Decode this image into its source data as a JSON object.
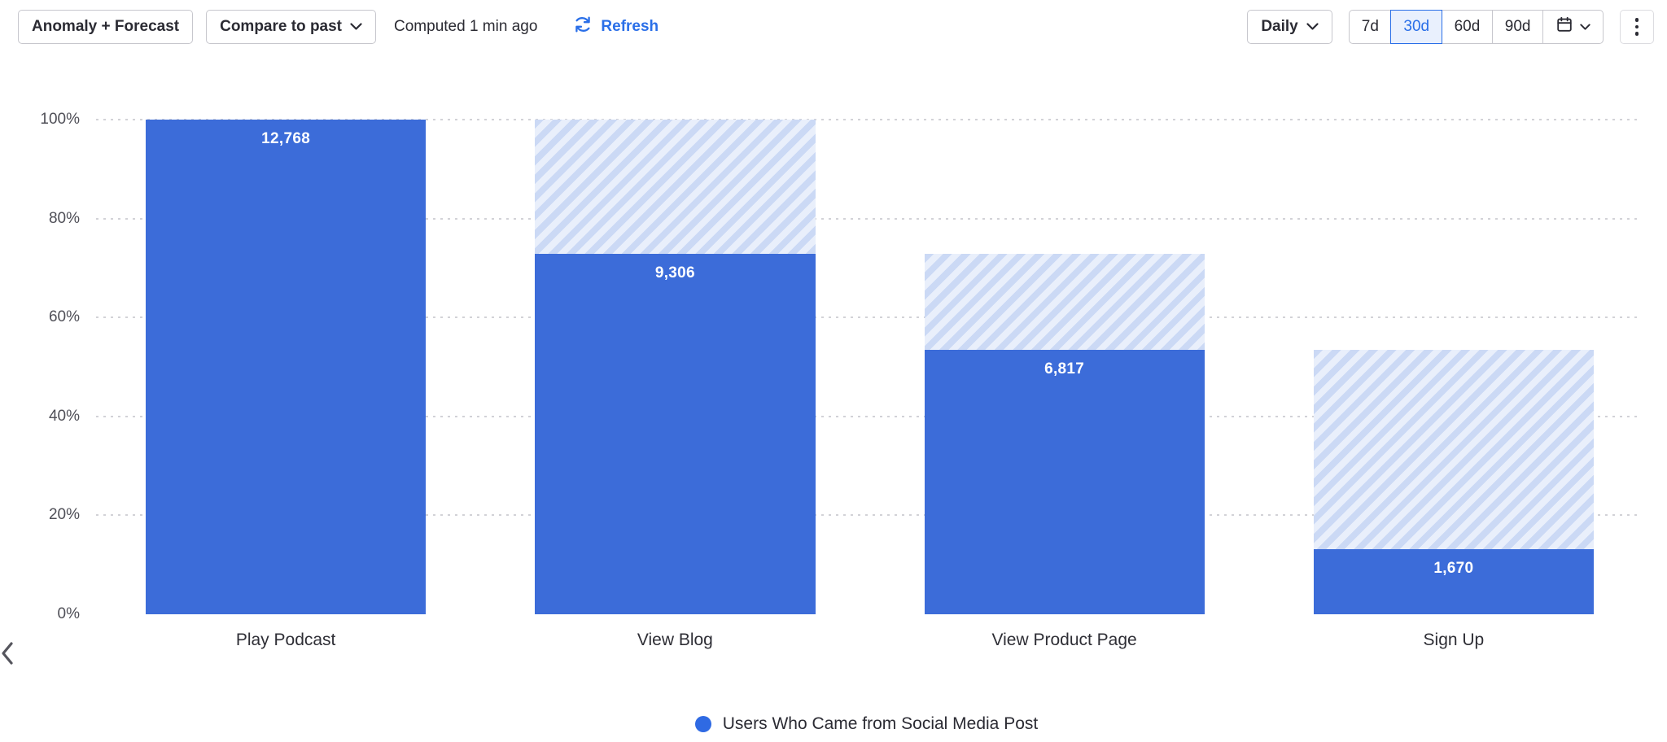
{
  "toolbar": {
    "anomaly_button": "Anomaly + Forecast",
    "compare_button": "Compare to past",
    "computed_text": "Computed 1 min ago",
    "refresh_label": "Refresh",
    "interval_button": "Daily",
    "range_options": [
      "7d",
      "30d",
      "60d",
      "90d"
    ],
    "selected_range": "30d"
  },
  "colors": {
    "bar": "#3c6cd9",
    "hatch_dark": "#cbd9f5",
    "hatch_light": "#e9effb",
    "accent": "#2a6fe8",
    "legend_dot": "#2f6ae3"
  },
  "chart_data": {
    "type": "bar",
    "subtype": "funnel-conversion",
    "categories": [
      "Play Podcast",
      "View Blog",
      "View Product Page",
      "Sign Up"
    ],
    "values": [
      12768,
      9306,
      6817,
      1670
    ],
    "value_labels": [
      "12,768",
      "9,306",
      "6,817",
      "1,670"
    ],
    "percent_of_first": [
      100,
      72.9,
      53.4,
      13.1
    ],
    "y_ticks": [
      "0%",
      "20%",
      "40%",
      "60%",
      "80%",
      "100%"
    ],
    "ylim": [
      0,
      100
    ],
    "grid": "horizontal-dotted",
    "hatch_overlay": "previous-step-total",
    "legend": [
      {
        "label": "Users Who Came from Social Media Post",
        "color": "#2f6ae3"
      }
    ],
    "legend_position": "bottom"
  }
}
